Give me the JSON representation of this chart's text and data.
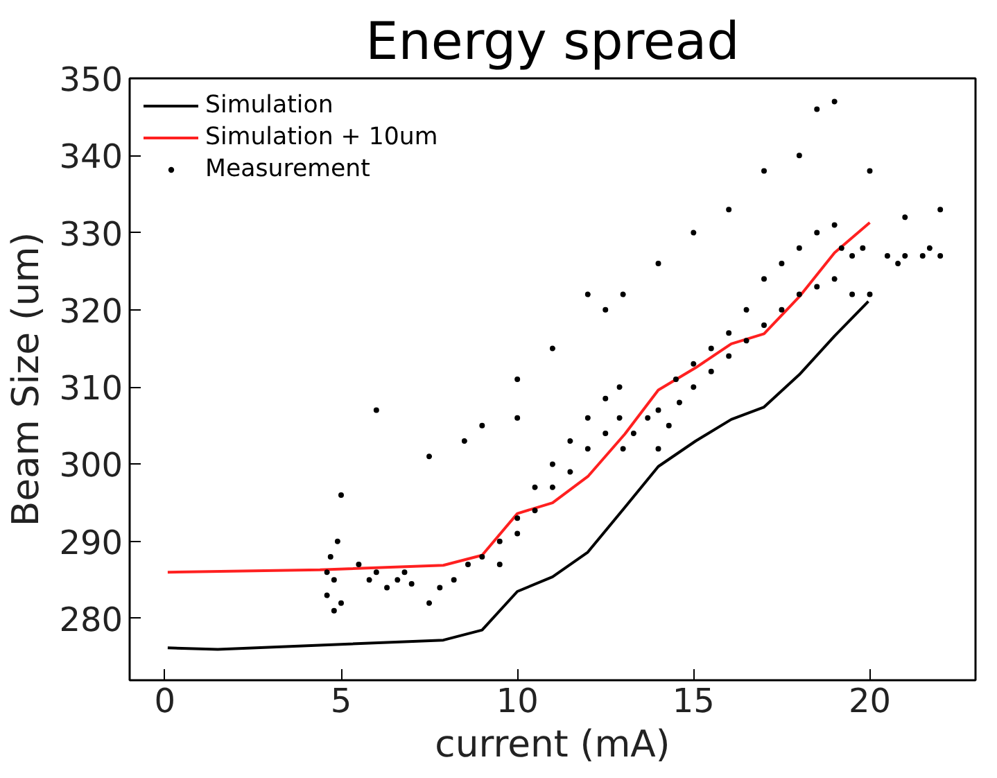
{
  "chart_data": {
    "type": "line",
    "title": "Energy spread",
    "xlabel": "current (mA)",
    "ylabel": "Beam Size (um)",
    "xlim": [
      -1,
      23
    ],
    "ylim": [
      272,
      350
    ],
    "xticks": [
      0,
      5,
      10,
      15,
      20
    ],
    "yticks": [
      280,
      290,
      300,
      310,
      320,
      330,
      340,
      350
    ],
    "grid": false,
    "legend": "top left",
    "series": [
      {
        "name": "Simulation",
        "color": "#000000",
        "marker": "none",
        "x": [
          0.08,
          1.5,
          7.9,
          9.0,
          10.0,
          11.0,
          12.0,
          13.05,
          14.0,
          15.06,
          16.07,
          17.0,
          18.0,
          19.0,
          19.96
        ],
        "values": [
          276.2,
          276.0,
          277.2,
          278.5,
          283.5,
          285.4,
          288.6,
          294.4,
          299.7,
          303.0,
          305.8,
          307.4,
          311.6,
          316.6,
          321.1
        ]
      },
      {
        "name": "Simulation + 10um",
        "color": "#ff2020",
        "marker": "none",
        "x": [
          0.08,
          4.4,
          7.9,
          9.0,
          10.0,
          11.0,
          12.0,
          13.05,
          14.0,
          15.06,
          16.07,
          17.0,
          18.0,
          19.0,
          20.0
        ],
        "values": [
          286.0,
          286.3,
          286.9,
          288.2,
          293.6,
          295.0,
          298.4,
          303.9,
          309.6,
          312.5,
          315.6,
          316.9,
          321.7,
          327.4,
          331.3
        ]
      },
      {
        "name": "Measurement",
        "type": "scatter",
        "color": "#000000",
        "marker": "circle",
        "x": [
          4.6,
          4.7,
          4.8,
          4.9,
          5.0,
          4.6,
          4.8,
          5.5,
          5.8,
          6.0,
          6.3,
          6.6,
          7.0,
          6.8,
          7.5,
          7.8,
          8.2,
          8.6,
          9.0,
          9.5,
          10,
          10.5,
          11,
          11.5,
          12,
          12.5,
          12.9,
          9.5,
          10,
          10.5,
          11,
          11.5,
          12,
          12.5,
          12.9,
          13.0,
          13.3,
          13.7,
          14.0,
          14.0,
          14.3,
          14.6,
          15.0,
          14.5,
          15.0,
          15.5,
          16.0,
          16.5,
          17.0,
          17.5,
          18.0,
          18.5,
          19.0,
          19.2,
          19.5,
          19.8,
          15.5,
          16.0,
          16.5,
          17.0,
          17.5,
          18.0,
          18.5,
          19.0,
          19.5,
          20.0,
          20.5,
          21.0,
          21.5,
          22.0,
          20.8,
          21.7,
          6.0,
          5.0,
          7.5,
          9.0,
          8.5,
          10.0,
          11.0,
          12.0,
          12.5,
          13.0,
          14.0,
          15.0,
          16.0,
          17.0,
          18.0,
          19.0,
          18.5,
          20.0,
          21.0,
          22.0,
          10.0
        ],
        "values": [
          283,
          288,
          285,
          290,
          282,
          286,
          281,
          287,
          285,
          286,
          284,
          285,
          284.5,
          286,
          282,
          284,
          285,
          287,
          288,
          290,
          293,
          297,
          300,
          303,
          306,
          308.5,
          310,
          287,
          291,
          294,
          297,
          299,
          302,
          304,
          306,
          302,
          304,
          306,
          307,
          302,
          305,
          308,
          310,
          311,
          313,
          315,
          317,
          320,
          324,
          326,
          328,
          330,
          331,
          328,
          327,
          328,
          312,
          314,
          316,
          318,
          320,
          322,
          323,
          324,
          322,
          322,
          327,
          327,
          327,
          327,
          326,
          328,
          307,
          296,
          301,
          305,
          303,
          311,
          315,
          322,
          320,
          322,
          326,
          330,
          333,
          338,
          340,
          347,
          346,
          338,
          332,
          333,
          306
        ]
      }
    ]
  }
}
